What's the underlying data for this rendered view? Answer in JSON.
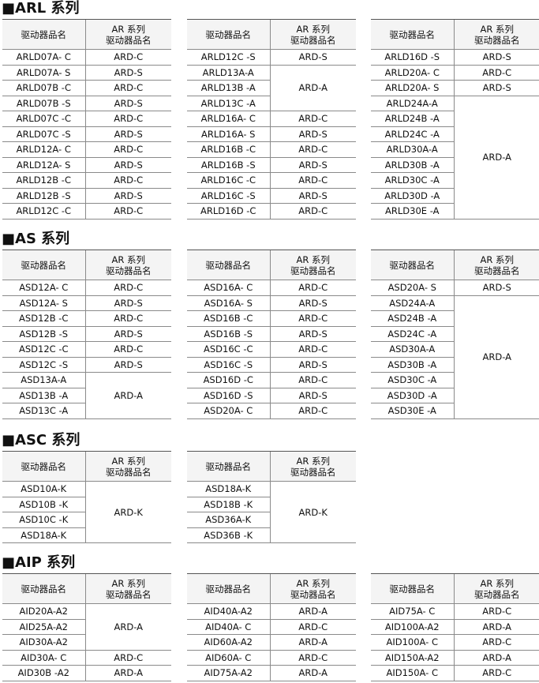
{
  "headers": {
    "model": "驱动器品名",
    "driver": [
      "AR 系列",
      "驱动器品名"
    ]
  },
  "sections": [
    {
      "title": "■ARL 系列",
      "tables": [
        [
          {
            "driver": "ARD-C",
            "models": [
              "ARLD07A- C"
            ]
          },
          {
            "driver": "ARD-S",
            "models": [
              "ARLD07A- S"
            ]
          },
          {
            "driver": "ARD-C",
            "models": [
              "ARLD07B -C"
            ]
          },
          {
            "driver": "ARD-S",
            "models": [
              "ARLD07B -S"
            ]
          },
          {
            "driver": "ARD-C",
            "models": [
              "ARLD07C -C"
            ]
          },
          {
            "driver": "ARD-S",
            "models": [
              "ARLD07C -S"
            ]
          },
          {
            "driver": "ARD-C",
            "models": [
              "ARLD12A- C"
            ]
          },
          {
            "driver": "ARD-S",
            "models": [
              "ARLD12A- S"
            ]
          },
          {
            "driver": "ARD-C",
            "models": [
              "ARLD12B -C"
            ]
          },
          {
            "driver": "ARD-S",
            "models": [
              "ARLD12B -S"
            ]
          },
          {
            "driver": "ARD-C",
            "models": [
              "ARLD12C -C"
            ]
          }
        ],
        [
          {
            "driver": "ARD-S",
            "models": [
              "ARLD12C -S"
            ]
          },
          {
            "driver": "ARD-A",
            "models": [
              "ARLD13A-A",
              "ARLD13B -A",
              "ARLD13C -A"
            ]
          },
          {
            "driver": "ARD-C",
            "models": [
              "ARLD16A- C"
            ]
          },
          {
            "driver": "ARD-S",
            "models": [
              "ARLD16A- S"
            ]
          },
          {
            "driver": "ARD-C",
            "models": [
              "ARLD16B -C"
            ]
          },
          {
            "driver": "ARD-S",
            "models": [
              "ARLD16B -S"
            ]
          },
          {
            "driver": "ARD-C",
            "models": [
              "ARLD16C -C"
            ]
          },
          {
            "driver": "ARD-S",
            "models": [
              "ARLD16C -S"
            ]
          },
          {
            "driver": "ARD-C",
            "models": [
              "ARLD16D -C"
            ]
          }
        ],
        [
          {
            "driver": "ARD-S",
            "models": [
              "ARLD16D -S"
            ]
          },
          {
            "driver": "ARD-C",
            "models": [
              "ARLD20A- C"
            ]
          },
          {
            "driver": "ARD-S",
            "models": [
              "ARLD20A- S"
            ]
          },
          {
            "driver": "ARD-A",
            "models": [
              "ARLD24A-A",
              "ARLD24B -A",
              "ARLD24C -A",
              "ARLD30A-A",
              "ARLD30B -A",
              "ARLD30C -A",
              "ARLD30D -A",
              "ARLD30E -A"
            ]
          }
        ]
      ]
    },
    {
      "title": "■AS 系列",
      "tables": [
        [
          {
            "driver": "ARD-C",
            "models": [
              "ASD12A- C"
            ]
          },
          {
            "driver": "ARD-S",
            "models": [
              "ASD12A- S"
            ]
          },
          {
            "driver": "ARD-C",
            "models": [
              "ASD12B -C"
            ]
          },
          {
            "driver": "ARD-S",
            "models": [
              "ASD12B -S"
            ]
          },
          {
            "driver": "ARD-C",
            "models": [
              "ASD12C -C"
            ]
          },
          {
            "driver": "ARD-S",
            "models": [
              "ASD12C -S"
            ]
          },
          {
            "driver": "ARD-A",
            "models": [
              "ASD13A-A",
              "ASD13B -A",
              "ASD13C -A"
            ]
          }
        ],
        [
          {
            "driver": "ARD-C",
            "models": [
              "ASD16A- C"
            ]
          },
          {
            "driver": "ARD-S",
            "models": [
              "ASD16A- S"
            ]
          },
          {
            "driver": "ARD-C",
            "models": [
              "ASD16B -C"
            ]
          },
          {
            "driver": "ARD-S",
            "models": [
              "ASD16B -S"
            ]
          },
          {
            "driver": "ARD-C",
            "models": [
              "ASD16C -C"
            ]
          },
          {
            "driver": "ARD-S",
            "models": [
              "ASD16C -S"
            ]
          },
          {
            "driver": "ARD-C",
            "models": [
              "ASD16D -C"
            ]
          },
          {
            "driver": "ARD-S",
            "models": [
              "ASD16D -S"
            ]
          },
          {
            "driver": "ARD-C",
            "models": [
              "ASD20A- C"
            ]
          }
        ],
        [
          {
            "driver": "ARD-S",
            "models": [
              "ASD20A- S"
            ]
          },
          {
            "driver": "ARD-A",
            "models": [
              "ASD24A-A",
              "ASD24B -A",
              "ASD24C -A",
              "ASD30A-A",
              "ASD30B -A",
              "ASD30C -A",
              "ASD30D -A",
              "ASD30E -A"
            ]
          }
        ]
      ]
    },
    {
      "title": "■ASC 系列",
      "tables": [
        [
          {
            "driver": "ARD-K",
            "models": [
              "ASD10A-K",
              "ASD10B -K",
              "ASD10C -K",
              "ASD18A-K"
            ]
          }
        ],
        [
          {
            "driver": "ARD-K",
            "models": [
              "ASD18A-K",
              "ASD18B -K",
              "ASD36A-K",
              "ASD36B -K"
            ]
          }
        ]
      ]
    },
    {
      "title": "■AIP 系列",
      "tables": [
        [
          {
            "driver": "ARD-A",
            "models": [
              "AID20A-A2",
              "AID25A-A2",
              "AID30A-A2"
            ]
          },
          {
            "driver": "ARD-C",
            "models": [
              "AID30A- C"
            ]
          },
          {
            "driver": "ARD-A",
            "models": [
              "AID30B -A2"
            ]
          }
        ],
        [
          {
            "driver": "ARD-A",
            "models": [
              "AID40A-A2"
            ]
          },
          {
            "driver": "ARD-C",
            "models": [
              "AID40A- C"
            ]
          },
          {
            "driver": "ARD-A",
            "models": [
              "AID60A-A2"
            ]
          },
          {
            "driver": "ARD-C",
            "models": [
              "AID60A- C"
            ]
          },
          {
            "driver": "ARD-A",
            "models": [
              "AID75A-A2"
            ]
          }
        ],
        [
          {
            "driver": "ARD-C",
            "models": [
              "AID75A- C"
            ]
          },
          {
            "driver": "ARD-A",
            "models": [
              "AID100A-A2"
            ]
          },
          {
            "driver": "ARD-C",
            "models": [
              "AID100A- C"
            ]
          },
          {
            "driver": "ARD-A",
            "models": [
              "AID150A-A2"
            ]
          },
          {
            "driver": "ARD-C",
            "models": [
              "AID150A- C"
            ]
          }
        ]
      ]
    }
  ]
}
